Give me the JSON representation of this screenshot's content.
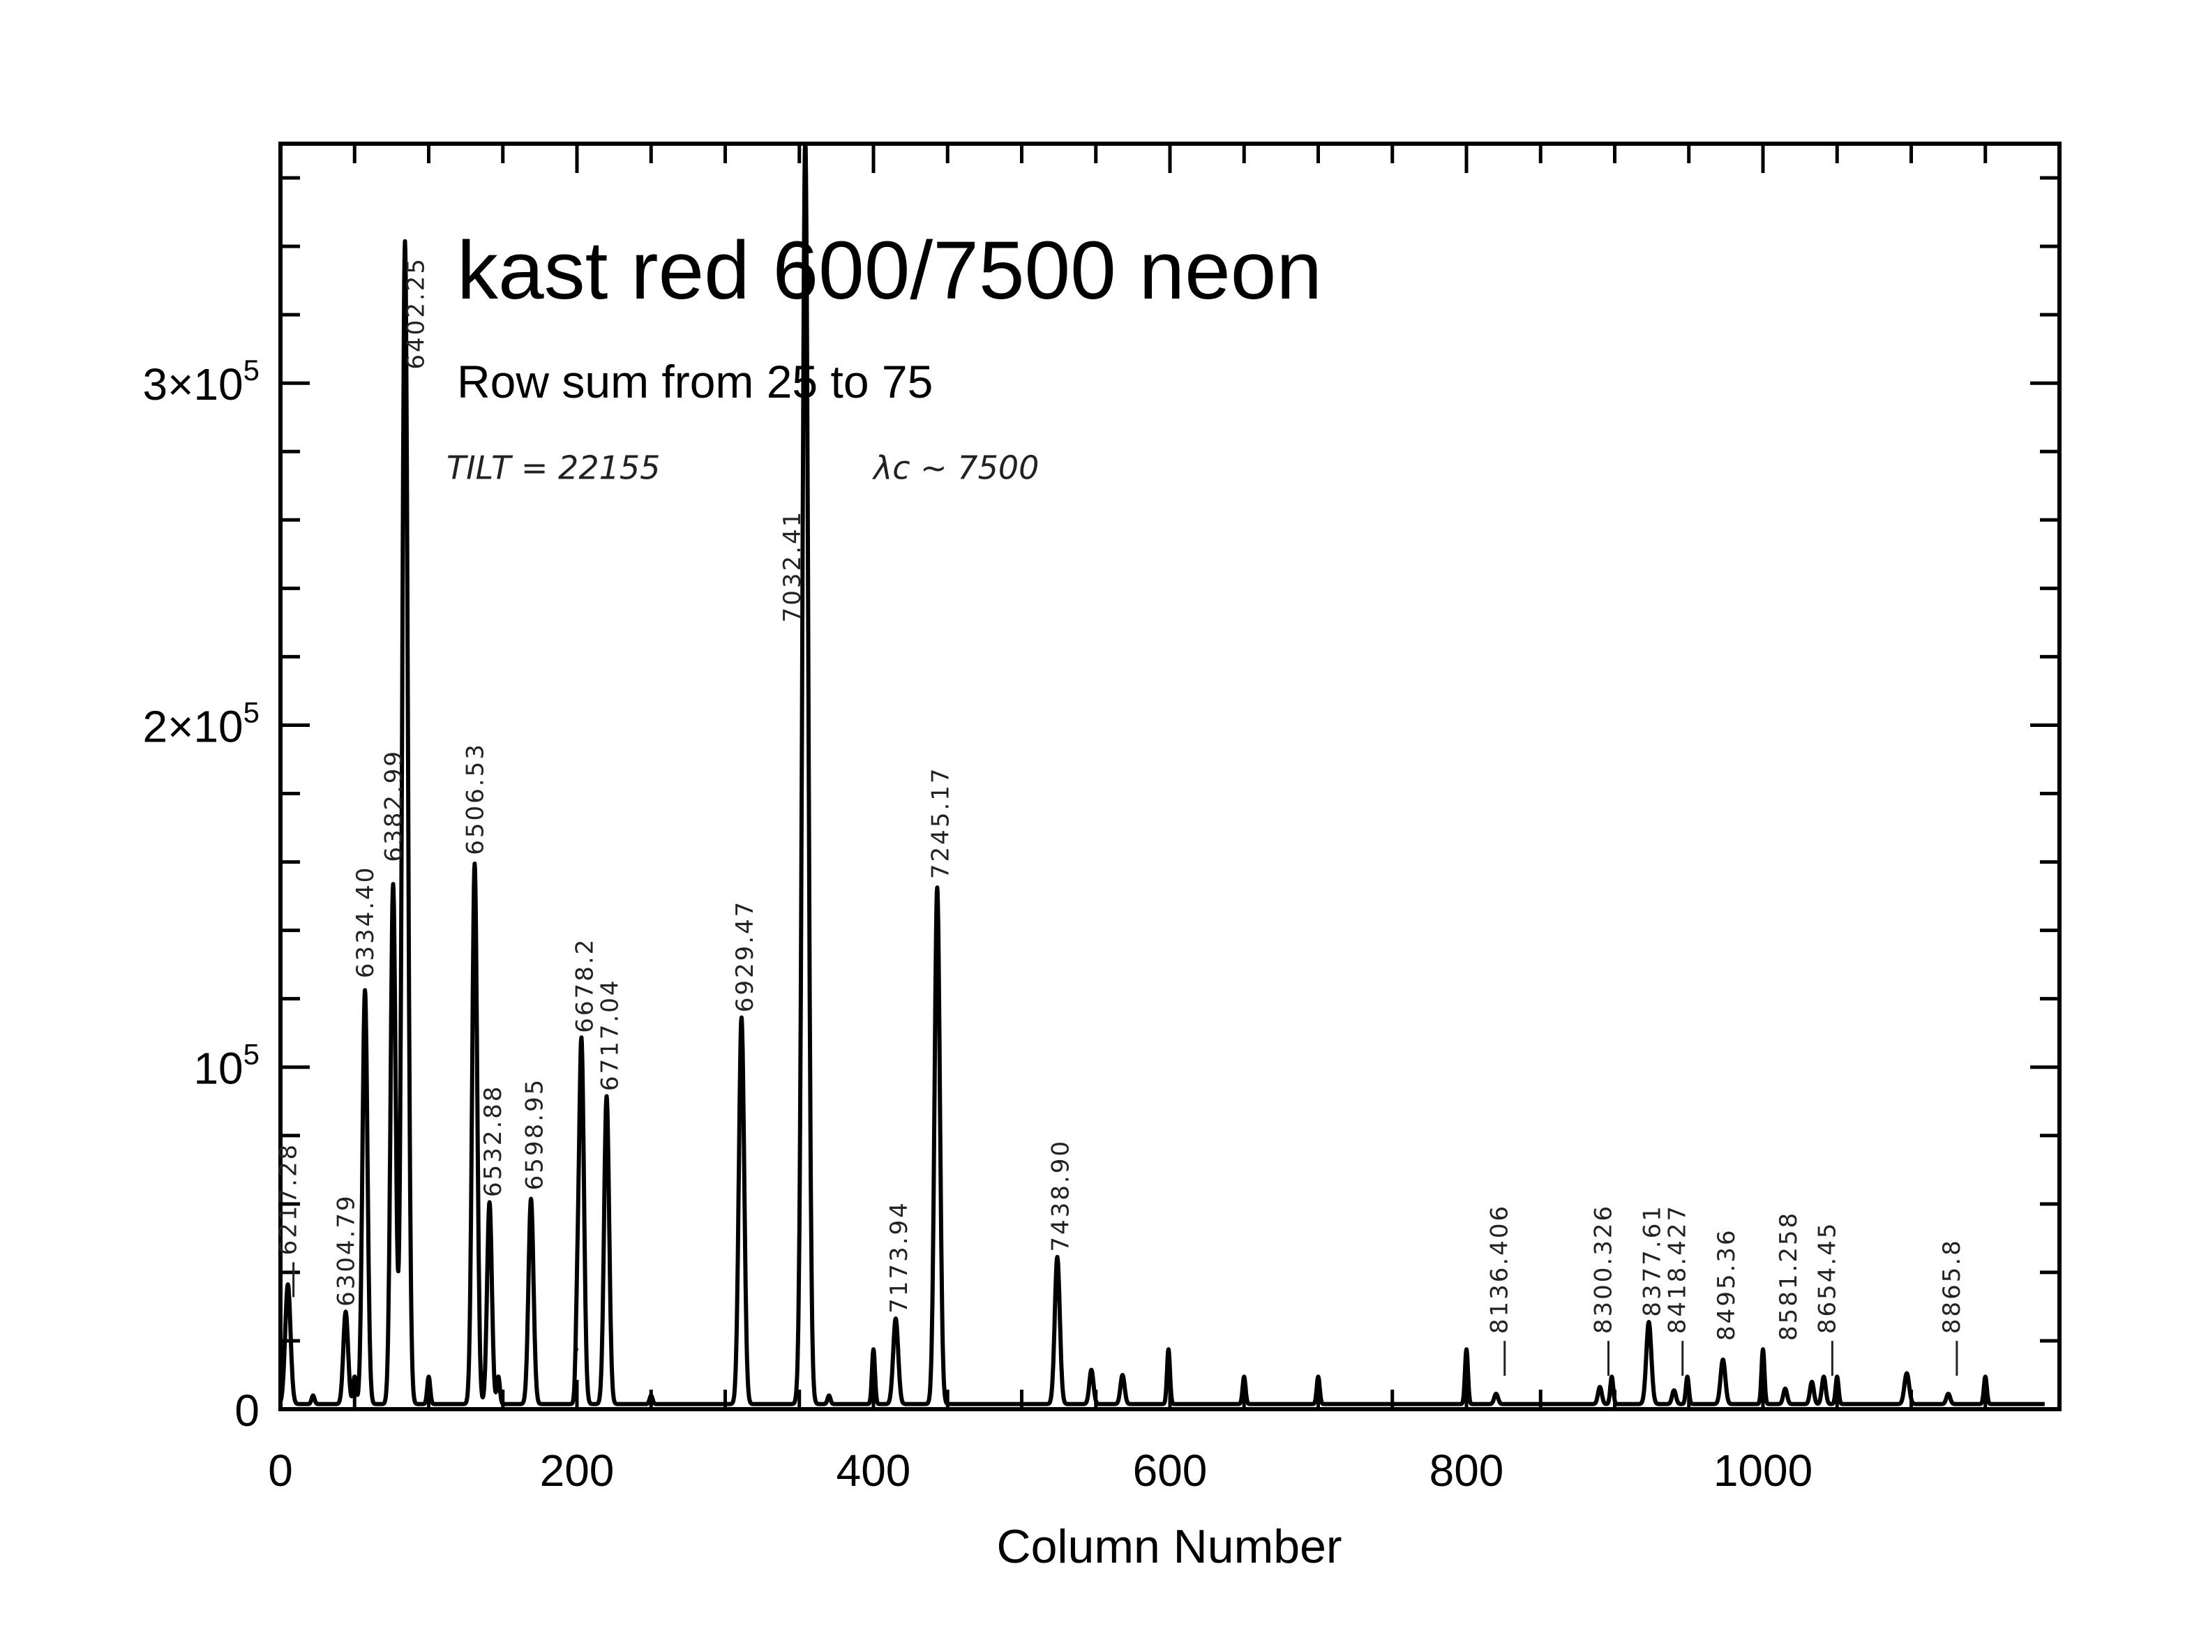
{
  "chart_data": {
    "type": "line",
    "title": "kast red 600/7500 neon",
    "subtitle": "Row sum from 25 to 75",
    "xlabel": "Column Number",
    "ylabel": "",
    "xlim": [
      0,
      1200
    ],
    "ylim": [
      0,
      370000
    ],
    "x_ticks": [
      {
        "value": 0,
        "label": "0"
      },
      {
        "value": 200,
        "label": "200"
      },
      {
        "value": 400,
        "label": "400"
      },
      {
        "value": 600,
        "label": "600"
      },
      {
        "value": 800,
        "label": "800"
      },
      {
        "value": 1000,
        "label": "1000"
      }
    ],
    "y_ticks": [
      {
        "value": 0,
        "label": "0",
        "sup": ""
      },
      {
        "value": 100000,
        "label": "10",
        "sup": "5"
      },
      {
        "value": 200000,
        "label": "2×10",
        "sup": "5"
      },
      {
        "value": 300000,
        "label": "3×10",
        "sup": "5"
      }
    ],
    "peaks": [
      {
        "x": 5,
        "y": 35000,
        "w": 1.8
      },
      {
        "x": 22,
        "y": 2500,
        "w": 1.0
      },
      {
        "x": 44,
        "y": 27000,
        "w": 1.6
      },
      {
        "x": 50,
        "y": 8000,
        "w": 1.0
      },
      {
        "x": 57,
        "y": 121000,
        "w": 1.7
      },
      {
        "x": 76,
        "y": 152000,
        "w": 1.7
      },
      {
        "x": 84,
        "y": 340000,
        "w": 1.9
      },
      {
        "x": 100,
        "y": 8000,
        "w": 1.0
      },
      {
        "x": 131,
        "y": 158000,
        "w": 1.7
      },
      {
        "x": 141,
        "y": 59000,
        "w": 1.6
      },
      {
        "x": 147,
        "y": 8000,
        "w": 1.0
      },
      {
        "x": 169,
        "y": 60000,
        "w": 1.7
      },
      {
        "x": 200,
        "y": 16000,
        "w": 1.0
      },
      {
        "x": 203,
        "y": 107000,
        "w": 1.7
      },
      {
        "x": 220,
        "y": 90000,
        "w": 1.7
      },
      {
        "x": 250,
        "y": 2500,
        "w": 1.0
      },
      {
        "x": 311,
        "y": 113000,
        "w": 1.8
      },
      {
        "x": 354,
        "y": 370000,
        "w": 2.0
      },
      {
        "x": 370,
        "y": 2500,
        "w": 1.0
      },
      {
        "x": 400,
        "y": 16000,
        "w": 1.0
      },
      {
        "x": 415,
        "y": 25000,
        "w": 1.7
      },
      {
        "x": 443,
        "y": 151000,
        "w": 1.8
      },
      {
        "x": 524,
        "y": 43000,
        "w": 1.7
      },
      {
        "x": 547,
        "y": 10000,
        "w": 1.4
      },
      {
        "x": 568,
        "y": 8500,
        "w": 1.4
      },
      {
        "x": 599,
        "y": 16000,
        "w": 1.0
      },
      {
        "x": 650,
        "y": 8000,
        "w": 1.0
      },
      {
        "x": 700,
        "y": 8000,
        "w": 1.0
      },
      {
        "x": 800,
        "y": 16000,
        "w": 1.0
      },
      {
        "x": 820,
        "y": 3000,
        "w": 1.3
      },
      {
        "x": 890,
        "y": 5000,
        "w": 1.3
      },
      {
        "x": 898,
        "y": 8000,
        "w": 1.0
      },
      {
        "x": 923,
        "y": 24000,
        "w": 1.7
      },
      {
        "x": 940,
        "y": 4000,
        "w": 1.3
      },
      {
        "x": 949,
        "y": 8000,
        "w": 1.0
      },
      {
        "x": 973,
        "y": 13000,
        "w": 1.6
      },
      {
        "x": 1000,
        "y": 16000,
        "w": 1.0
      },
      {
        "x": 1015,
        "y": 4500,
        "w": 1.3
      },
      {
        "x": 1033,
        "y": 6500,
        "w": 1.3
      },
      {
        "x": 1041,
        "y": 8000,
        "w": 1.3
      },
      {
        "x": 1050,
        "y": 8000,
        "w": 1.0
      },
      {
        "x": 1097,
        "y": 9000,
        "w": 1.6
      },
      {
        "x": 1125,
        "y": 3000,
        "w": 1.3
      },
      {
        "x": 1150,
        "y": 8000,
        "w": 1.0
      }
    ],
    "line_labels": [
      {
        "x": 5,
        "text": "6217.28",
        "base_y": 45000,
        "leader": true
      },
      {
        "x": 44,
        "text": "6304.79",
        "base_y": 30000
      },
      {
        "x": 57,
        "text": "6334.40",
        "base_y": 126000
      },
      {
        "x": 76,
        "text": "6382.99",
        "base_y": 160000
      },
      {
        "x": 91,
        "text": "6402.25",
        "base_y": 304000
      },
      {
        "x": 131,
        "text": "6506.53",
        "base_y": 162000
      },
      {
        "x": 143,
        "text": "6532.88",
        "base_y": 62000
      },
      {
        "x": 171,
        "text": "6598.95",
        "base_y": 64000
      },
      {
        "x": 205,
        "text": "6678.2",
        "base_y": 110000
      },
      {
        "x": 222,
        "text": "6717.04",
        "base_y": 93000
      },
      {
        "x": 313,
        "text": "6929.47",
        "base_y": 116000
      },
      {
        "x": 345,
        "text": "7032.41",
        "base_y": 230000
      },
      {
        "x": 417,
        "text": "7173.94",
        "base_y": 28000
      },
      {
        "x": 445,
        "text": "7245.17",
        "base_y": 155000
      },
      {
        "x": 526,
        "text": "7438.90",
        "base_y": 46000
      },
      {
        "x": 822,
        "text": "8136.406",
        "base_y": 22000,
        "leader": true
      },
      {
        "x": 892,
        "text": "8300.326",
        "base_y": 22000,
        "leader": true
      },
      {
        "x": 925,
        "text": "8377.61",
        "base_y": 27000
      },
      {
        "x": 942,
        "text": "8418.427",
        "base_y": 22000,
        "leader": true
      },
      {
        "x": 975,
        "text": "8495.36",
        "base_y": 20000
      },
      {
        "x": 1017,
        "text": "8581.258",
        "base_y": 20000
      },
      {
        "x": 1043,
        "text": "8654.45",
        "base_y": 22000,
        "leader": true
      },
      {
        "x": 1127,
        "text": "8865.8",
        "base_y": 22000,
        "leader": true
      }
    ],
    "annotations": [
      {
        "text": "TILT = 22155",
        "x": 112,
        "y": 272000
      },
      {
        "text": "λc ~ 7500",
        "x": 400,
        "y": 272000
      }
    ],
    "grid": false,
    "legend": "none"
  },
  "colors": {
    "background": "#ffffff",
    "ink": "#000000",
    "pencil": "#222222"
  }
}
